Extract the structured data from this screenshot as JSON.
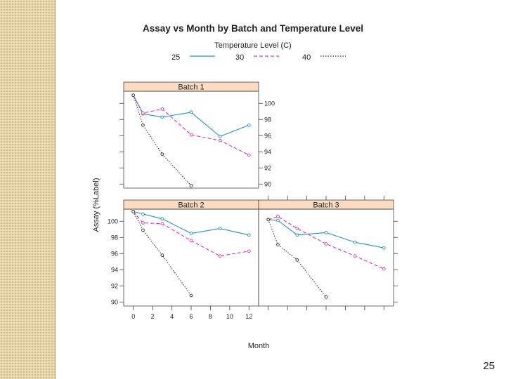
{
  "page_number": "25",
  "colors": {
    "strip_bg": "#fbdcc2",
    "side_strip": "#e7d5aa"
  },
  "chart_data": {
    "type": "line",
    "title": "Assay vs Month by Batch and Temperature Level",
    "xlabel": "Month",
    "ylabel": "Assay (%Label)",
    "xlim": [
      -1,
      13
    ],
    "ylim": [
      89.5,
      101.5
    ],
    "x_ticks": [
      0,
      2,
      4,
      6,
      8,
      10,
      12
    ],
    "y_ticks": [
      90,
      92,
      94,
      96,
      98,
      100
    ],
    "legend": {
      "title": "Temperature Level (C)",
      "position": "top",
      "entries": [
        {
          "label": "25",
          "color": "#2a8fb5",
          "dash": "solid"
        },
        {
          "label": "30",
          "color": "#d23bb5",
          "dash": "dashed"
        },
        {
          "label": "40",
          "color": "#333333",
          "dash": "dotted"
        }
      ]
    },
    "panels": [
      {
        "name": "Batch 1",
        "series": [
          {
            "name": "25",
            "x": [
              0,
              1,
              3,
              6,
              9,
              12
            ],
            "y": [
              101.0,
              98.7,
              98.3,
              98.9,
              95.9,
              97.3
            ]
          },
          {
            "name": "30",
            "x": [
              0,
              1,
              3,
              6,
              9,
              12
            ],
            "y": [
              101.0,
              98.8,
              99.3,
              96.1,
              95.4,
              93.6
            ]
          },
          {
            "name": "40",
            "x": [
              0,
              1,
              3,
              6
            ],
            "y": [
              101.0,
              97.3,
              93.7,
              89.8
            ]
          }
        ]
      },
      {
        "name": "Batch 2",
        "series": [
          {
            "name": "25",
            "x": [
              0,
              1,
              3,
              6,
              9,
              12
            ],
            "y": [
              101.2,
              100.9,
              100.3,
              98.5,
              99.1,
              98.3
            ]
          },
          {
            "name": "30",
            "x": [
              0,
              1,
              3,
              6,
              9,
              12
            ],
            "y": [
              101.2,
              99.8,
              99.7,
              97.6,
              95.7,
              96.3
            ]
          },
          {
            "name": "40",
            "x": [
              0,
              1,
              3,
              6
            ],
            "y": [
              101.2,
              98.9,
              95.8,
              90.8
            ]
          }
        ]
      },
      {
        "name": "Batch 3",
        "series": [
          {
            "name": "25",
            "x": [
              0,
              1,
              3,
              6,
              9,
              12
            ],
            "y": [
              100.2,
              100.1,
              98.3,
              98.6,
              97.4,
              96.7
            ]
          },
          {
            "name": "30",
            "x": [
              0,
              1,
              3,
              6,
              9,
              12
            ],
            "y": [
              100.2,
              100.6,
              99.1,
              97.2,
              95.7,
              94.1
            ]
          },
          {
            "name": "40",
            "x": [
              0,
              1,
              3,
              6
            ],
            "y": [
              100.2,
              97.1,
              95.2,
              90.6
            ]
          }
        ]
      }
    ]
  }
}
